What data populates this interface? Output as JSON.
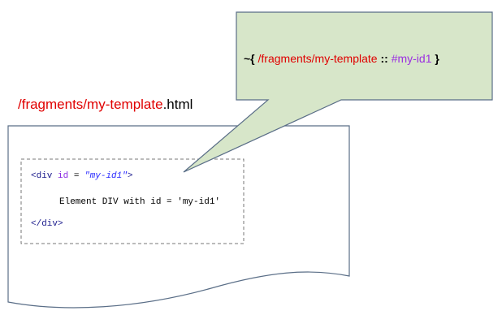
{
  "callout": {
    "open": "~{",
    "template": "/fragments/my-template",
    "separator": "::",
    "selector": "#my-id1",
    "close": "}"
  },
  "file_label": {
    "path": "/fragments/my-template",
    "extension": ".html"
  },
  "code": {
    "open_tag": "<div",
    "attr": "id",
    "equals": "=",
    "attr_value": "\"my-id1\"",
    "open_tag_end": ">",
    "content": "Element DIV with id = 'my-id1'",
    "close_tag": "</div>"
  }
}
